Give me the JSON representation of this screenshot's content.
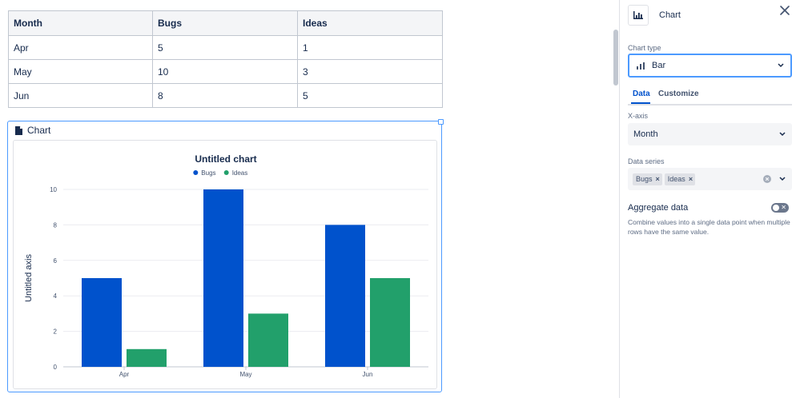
{
  "table": {
    "headers": [
      "Month",
      "Bugs",
      "Ideas"
    ],
    "rows": [
      [
        "Apr",
        "5",
        "1"
      ],
      [
        "May",
        "10",
        "3"
      ],
      [
        "Jun",
        "8",
        "5"
      ]
    ]
  },
  "macro": {
    "title": "Chart",
    "icon": "document-icon"
  },
  "chart_data": {
    "type": "bar",
    "title": "Untitled chart",
    "xlabel": "",
    "ylabel": "Untitled axis",
    "categories": [
      "Apr",
      "May",
      "Jun"
    ],
    "series": [
      {
        "name": "Bugs",
        "values": [
          5,
          10,
          8
        ],
        "color": "#0052cc"
      },
      {
        "name": "Ideas",
        "values": [
          1,
          3,
          5
        ],
        "color": "#22a06b"
      }
    ],
    "ylim": [
      0,
      10
    ],
    "yticks": [
      0,
      2,
      4,
      6,
      8,
      10
    ],
    "grid": true,
    "legend": "top-center"
  },
  "panel": {
    "title": "Chart",
    "chart_type_label": "Chart type",
    "chart_type_value": "Bar",
    "tabs": [
      "Data",
      "Customize"
    ],
    "active_tab": "Data",
    "x_axis_label": "X-axis",
    "x_axis_value": "Month",
    "data_series_label": "Data series",
    "data_series_chips": [
      "Bugs",
      "Ideas"
    ],
    "aggregate_title": "Aggregate data",
    "aggregate_description": "Combine values into a single data point when multiple rows have the same value.",
    "aggregate_enabled": false
  },
  "colors": {
    "accent": "#0052cc",
    "focus": "#4c9aff",
    "bugs": "#0052cc",
    "ideas": "#22a06b"
  }
}
